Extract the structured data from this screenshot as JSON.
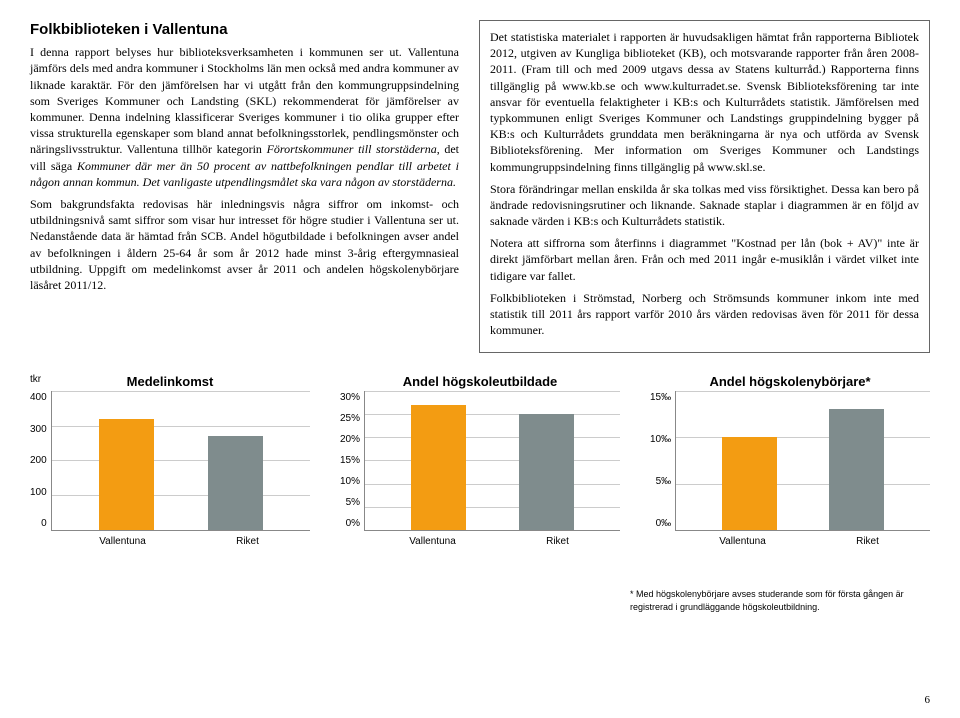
{
  "title": "Folkbiblioteken i Vallentuna",
  "left_paragraphs": [
    "I denna rapport belyses hur biblioteksverksamheten i kommunen ser ut. Vallentuna jämförs dels med andra kommuner i Stockholms län men också med andra kommuner av liknade karaktär. För den jämförelsen har vi utgått från den kommungruppsindelning som Sveriges Kommuner och Landsting (SKL) rekommenderat för jämförelser av kommuner. Denna indelning klassificerar Sveriges kommuner i tio olika grupper efter vissa strukturella egenskaper som bland annat befolkningsstorlek, pendlingsmönster och näringslivsstruktur. Vallentuna tillhör kategorin <i>Förortskommuner till storstäderna</i>, det vill säga <i>Kommuner där mer än 50 procent av nattbefolkningen pendlar till arbetet i någon annan kommun. Det vanligaste utpendlingsmålet ska vara någon av storstäderna.</i>",
    "Som bakgrundsfakta redovisas här inledningsvis några siffror om inkomst- och utbildningsnivå samt siffror som visar hur intresset för högre studier i Vallentuna ser ut. Nedanstående data är hämtad från SCB. Andel högutbildade i befolkningen avser andel av befolkningen i åldern 25-64 år som år 2012 hade minst 3-årig eftergymnasieal utbildning. Uppgift om medelinkomst avser år 2011 och andelen högskolenybörjare läsåret 2011/12."
  ],
  "right_paragraphs": [
    "Det statistiska materialet i rapporten är huvudsakligen hämtat från rapporterna Bibliotek 2012, utgiven av Kungliga biblioteket (KB), och motsvarande rapporter från åren 2008-2011. (Fram till och med 2009 utgavs dessa av Statens kulturråd.) Rapporterna finns tillgänglig på www.kb.se och www.kulturradet.se. Svensk Biblioteksförening tar inte ansvar för eventuella felaktigheter i KB:s och Kulturrådets statistik. Jämförelsen med typkommunen enligt Sveriges Kommuner och Landstings gruppindelning bygger på KB:s och Kulturrådets grunddata men beräkningarna är nya och utförda av Svensk Biblioteksförening. Mer information om Sveriges Kommuner och Landstings kommungruppsindelning finns tillgänglig på www.skl.se.",
    "Stora förändringar mellan enskilda år ska tolkas med viss försiktighet. Dessa kan bero på ändrade redovisningsrutiner och liknande. Saknade staplar i diagrammen är en följd av saknade värden i KB:s och Kulturrådets statistik.",
    "Notera att siffrorna som återfinns i diagrammet \"Kostnad per lån (bok + AV)\" inte är direkt jämförbart mellan åren. Från och med 2011 ingår e-musiklån i värdet vilket inte tidigare var fallet.",
    "Folkbiblioteken i Strömstad, Norberg och Strömsunds kommuner inkom inte med statistik till 2011 års rapport varför 2010 års värden redovisas även för 2011 för dessa kommuner."
  ],
  "charts": [
    {
      "title": "Medelinkomst",
      "y_unit": "tkr",
      "y_max": 400,
      "y_ticks": [
        "400",
        "300",
        "200",
        "100",
        "0"
      ],
      "categories": [
        "Vallentuna",
        "Riket"
      ],
      "values": [
        320,
        270
      ],
      "colors": [
        "#f39c12",
        "#7f8c8d"
      ]
    },
    {
      "title": "Andel högskoleutbildade",
      "y_unit": "",
      "y_max": 30,
      "y_ticks": [
        "30%",
        "25%",
        "20%",
        "15%",
        "10%",
        "5%",
        "0%"
      ],
      "categories": [
        "Vallentuna",
        "Riket"
      ],
      "values": [
        27,
        25
      ],
      "colors": [
        "#f39c12",
        "#7f8c8d"
      ]
    },
    {
      "title": "Andel högskolenybörjare*",
      "y_unit": "",
      "y_max": 15,
      "y_ticks": [
        "15‰",
        "10‰",
        "5‰",
        "0‰"
      ],
      "categories": [
        "Vallentuna",
        "Riket"
      ],
      "values": [
        10,
        13
      ],
      "colors": [
        "#f39c12",
        "#7f8c8d"
      ]
    }
  ],
  "footnote": "* Med högskolenybörjare avses studerande som för första gången är registrerad i grundläggande högskoleutbildning.",
  "page_number": "6"
}
